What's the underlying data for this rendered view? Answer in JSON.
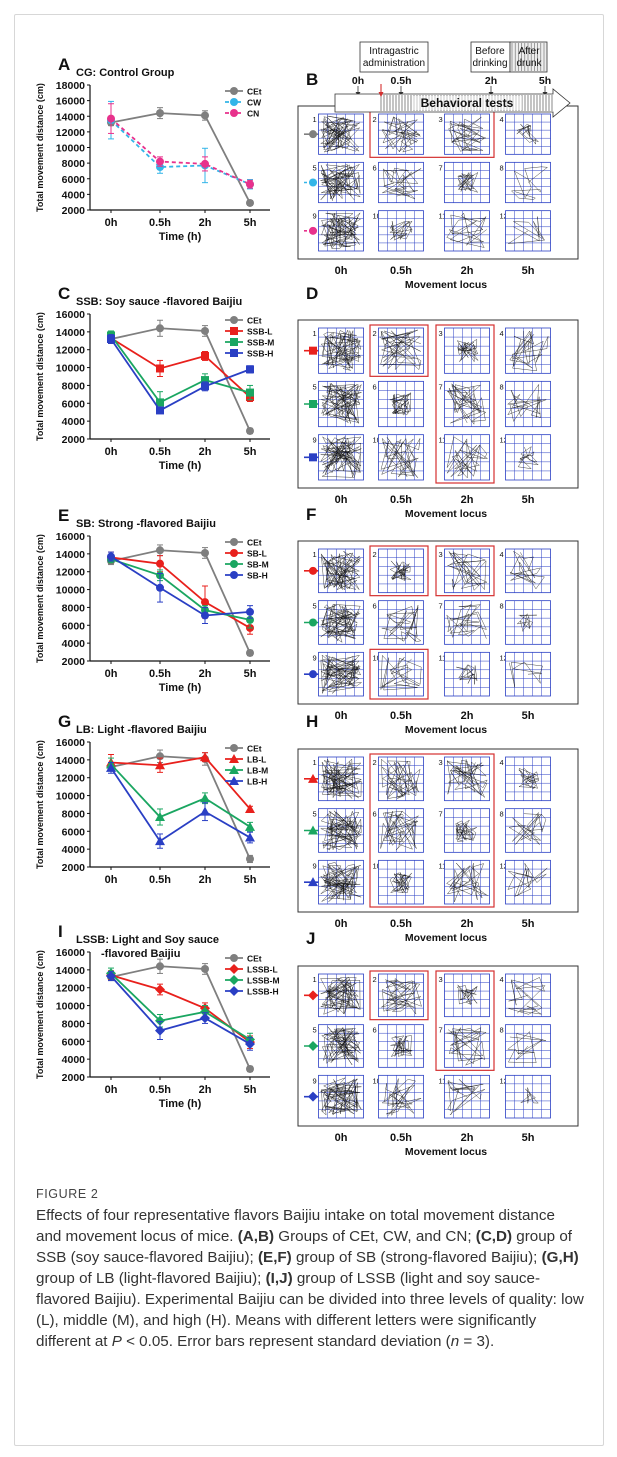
{
  "panels": [
    {
      "letter": "A",
      "title": "CG: Control Group",
      "title2": "",
      "series": [
        {
          "name": "CEt",
          "color": "#7f7f7f",
          "marker": "circle",
          "dash": false,
          "values": [
            13200,
            14400,
            14100,
            2900
          ],
          "errors": [
            400,
            700,
            600,
            300
          ]
        },
        {
          "name": "CW",
          "color": "#33b5e8",
          "marker": "circle",
          "dash": true,
          "values": [
            13500,
            7500,
            7700,
            5300
          ],
          "errors": [
            2400,
            800,
            2200,
            600
          ]
        },
        {
          "name": "CN",
          "color": "#e8318c",
          "marker": "circle",
          "dash": true,
          "values": [
            13700,
            8200,
            7900,
            5300
          ],
          "errors": [
            1900,
            600,
            900,
            500
          ]
        }
      ]
    },
    {
      "letter": "C",
      "title": "SSB: Soy sauce -flavored Baijiu",
      "title2": "",
      "series": [
        {
          "name": "CEt",
          "color": "#7f7f7f",
          "marker": "circle",
          "dash": false,
          "values": [
            13200,
            14400,
            14100,
            2900
          ],
          "errors": [
            400,
            900,
            600,
            300
          ]
        },
        {
          "name": "SSB-L",
          "color": "#e8201c",
          "marker": "square",
          "dash": false,
          "values": [
            13300,
            9900,
            11300,
            6700
          ],
          "errors": [
            600,
            900,
            500,
            500
          ]
        },
        {
          "name": "SSB-M",
          "color": "#1aa661",
          "marker": "square",
          "dash": false,
          "values": [
            13600,
            6100,
            8600,
            7200
          ],
          "errors": [
            500,
            1200,
            700,
            800
          ]
        },
        {
          "name": "SSB-H",
          "color": "#2a3fc4",
          "marker": "square",
          "dash": false,
          "values": [
            13200,
            5200,
            7900,
            9800
          ],
          "errors": [
            500,
            300,
            500,
            400
          ]
        }
      ]
    },
    {
      "letter": "E",
      "title": "SB: Strong -flavored Baijiu",
      "title2": "",
      "series": [
        {
          "name": "CEt",
          "color": "#7f7f7f",
          "marker": "circle",
          "dash": false,
          "values": [
            13200,
            14400,
            14100,
            2900
          ],
          "errors": [
            400,
            600,
            600,
            300
          ]
        },
        {
          "name": "SB-L",
          "color": "#e8201c",
          "marker": "circle",
          "dash": false,
          "values": [
            13600,
            12900,
            8600,
            5700
          ],
          "errors": [
            600,
            900,
            1800,
            700
          ]
        },
        {
          "name": "SB-M",
          "color": "#1aa661",
          "marker": "circle",
          "dash": false,
          "values": [
            13400,
            11600,
            7700,
            6600
          ],
          "errors": [
            400,
            600,
            500,
            900
          ]
        },
        {
          "name": "SB-H",
          "color": "#2a3fc4",
          "marker": "circle",
          "dash": false,
          "values": [
            13700,
            10200,
            7100,
            7500
          ],
          "errors": [
            500,
            1600,
            900,
            700
          ]
        }
      ]
    },
    {
      "letter": "G",
      "title": "LB: Light -flavored Baijiu",
      "title2": "",
      "series": [
        {
          "name": "CEt",
          "color": "#7f7f7f",
          "marker": "circle",
          "dash": false,
          "values": [
            13200,
            14400,
            14100,
            2900
          ],
          "errors": [
            400,
            700,
            700,
            400
          ]
        },
        {
          "name": "LB-L",
          "color": "#e8201c",
          "marker": "triangle",
          "dash": false,
          "values": [
            13700,
            13400,
            14300,
            8500
          ],
          "errors": [
            900,
            800,
            500,
            300
          ]
        },
        {
          "name": "LB-M",
          "color": "#1aa661",
          "marker": "triangle",
          "dash": false,
          "values": [
            13500,
            7600,
            9700,
            6500
          ],
          "errors": [
            700,
            900,
            600,
            500
          ]
        },
        {
          "name": "LB-H",
          "color": "#2a3fc4",
          "marker": "triangle",
          "dash": false,
          "values": [
            13100,
            4900,
            8200,
            5300
          ],
          "errors": [
            600,
            800,
            1000,
            600
          ]
        }
      ]
    },
    {
      "letter": "I",
      "title": "LSSB: Light and Soy sauce",
      "title2": "-flavored Baijiu",
      "series": [
        {
          "name": "CEt",
          "color": "#7f7f7f",
          "marker": "circle",
          "dash": false,
          "values": [
            13200,
            14400,
            14100,
            2900
          ],
          "errors": [
            400,
            800,
            600,
            300
          ]
        },
        {
          "name": "LSSB-L",
          "color": "#e8201c",
          "marker": "diamond",
          "dash": false,
          "values": [
            13400,
            11800,
            9700,
            5900
          ],
          "errors": [
            500,
            600,
            600,
            700
          ]
        },
        {
          "name": "LSSB-M",
          "color": "#1aa661",
          "marker": "diamond",
          "dash": false,
          "values": [
            13600,
            8300,
            9300,
            6200
          ],
          "errors": [
            600,
            700,
            700,
            700
          ]
        },
        {
          "name": "LSSB-H",
          "color": "#2a3fc4",
          "marker": "diamond",
          "dash": false,
          "values": [
            13300,
            7200,
            8600,
            5700
          ],
          "errors": [
            500,
            1000,
            600,
            700
          ]
        }
      ]
    }
  ],
  "chart_data": [
    {
      "type": "line",
      "title": "CG: Control Group",
      "x": [
        "0h",
        "0.5h",
        "2h",
        "5h"
      ],
      "xlabel": "Time (h)",
      "ylabel": "Total movement distance (cm)",
      "ylim": [
        2000,
        18000
      ],
      "series": [
        {
          "name": "CEt",
          "values": [
            13200,
            14400,
            14100,
            2900
          ]
        },
        {
          "name": "CW",
          "values": [
            13500,
            7500,
            7700,
            5300
          ]
        },
        {
          "name": "CN",
          "values": [
            13700,
            8200,
            7900,
            5300
          ]
        }
      ]
    },
    {
      "type": "line",
      "title": "SSB: Soy sauce -flavored Baijiu",
      "x": [
        "0h",
        "0.5h",
        "2h",
        "5h"
      ],
      "xlabel": "Time (h)",
      "ylabel": "Total movement distance (cm)",
      "ylim": [
        2000,
        16000
      ],
      "series": [
        {
          "name": "SSB-L",
          "values": [
            13300,
            9900,
            11300,
            6700
          ]
        },
        {
          "name": "SSB-M",
          "values": [
            13600,
            6100,
            8600,
            7200
          ]
        },
        {
          "name": "SSB-H",
          "values": [
            13200,
            5200,
            7900,
            9800
          ]
        }
      ]
    },
    {
      "type": "line",
      "title": "SB: Strong -flavored Baijiu",
      "x": [
        "0h",
        "0.5h",
        "2h",
        "5h"
      ],
      "xlabel": "Time (h)",
      "ylabel": "Total movement distance (cm)",
      "ylim": [
        2000,
        16000
      ],
      "series": [
        {
          "name": "SB-L",
          "values": [
            13600,
            12900,
            8600,
            5700
          ]
        },
        {
          "name": "SB-M",
          "values": [
            13400,
            11600,
            7700,
            6600
          ]
        },
        {
          "name": "SB-H",
          "values": [
            13700,
            10200,
            7100,
            7500
          ]
        }
      ]
    },
    {
      "type": "line",
      "title": "LB: Light -flavored Baijiu",
      "x": [
        "0h",
        "0.5h",
        "2h",
        "5h"
      ],
      "xlabel": "",
      "ylabel": "Total movement distance (cm)",
      "ylim": [
        2000,
        16000
      ],
      "series": [
        {
          "name": "LB-L",
          "values": [
            13700,
            13400,
            14300,
            8500
          ]
        },
        {
          "name": "LB-M",
          "values": [
            13500,
            7600,
            9700,
            6500
          ]
        },
        {
          "name": "LB-H",
          "values": [
            13100,
            4900,
            8200,
            5300
          ]
        }
      ]
    },
    {
      "type": "line",
      "title": "LSSB: Light and Soy sauce -flavored Baijiu",
      "x": [
        "0h",
        "0.5h",
        "2h",
        "5h"
      ],
      "xlabel": "Time (h)",
      "ylabel": "Total movement distance (cm)",
      "ylim": [
        2000,
        16000
      ],
      "series": [
        {
          "name": "LSSB-L",
          "values": [
            13400,
            11800,
            9700,
            5900
          ]
        },
        {
          "name": "LSSB-M",
          "values": [
            13600,
            8300,
            9300,
            6200
          ]
        },
        {
          "name": "LSSB-H",
          "values": [
            13300,
            7200,
            8600,
            5700
          ]
        }
      ]
    }
  ],
  "axis": {
    "ylabel": "Total movement distance (cm)",
    "xlabel": "Time (h)",
    "xcats": [
      "0h",
      "0.5h",
      "2h",
      "5h"
    ],
    "ticks_a": [
      "2000",
      "4000",
      "6000",
      "8000",
      "10000",
      "12000",
      "14000",
      "16000",
      "18000"
    ],
    "ticks": [
      "2000",
      "4000",
      "6000",
      "8000",
      "10000",
      "12000",
      "14000",
      "16000"
    ]
  },
  "loci_letters": [
    "B",
    "D",
    "F",
    "H",
    "J"
  ],
  "timeline": {
    "box1": "Intragastric",
    "box1b": "administration",
    "box2": "Before",
    "box2b": "drinking",
    "box3": "After",
    "box3b": "drunk",
    "t0": "0h",
    "t1": "0.5h",
    "t2": "2h",
    "t3": "5h",
    "arrow_label": "Behavioral tests"
  },
  "loci": {
    "col_labels": [
      "0h",
      "0.5h",
      "2h",
      "5h"
    ],
    "xlabel": "Movement locus",
    "numbers": [
      "1",
      "2",
      "3",
      "4",
      "5",
      "6",
      "7",
      "8",
      "9",
      "10",
      "11",
      "12"
    ]
  },
  "caption": {
    "label": "FIGURE 2",
    "t1": "Effects of four representative flavors Baijiu intake on total movement distance and movement locus of mice. ",
    "b1": "(A,B)",
    "t2": " Groups of CEt, CW, and CN; ",
    "b2": "(C,D)",
    "t3": " group of SSB (soy sauce-flavored Baijiu); ",
    "b3": "(E,F)",
    "t4": " group of SB (strong-flavored Baijiu); ",
    "b4": "(G,H)",
    "t5": " group of LB (light-flavored Baijiu); ",
    "b5": "(I,J)",
    "t6": " group of LSSB (light and soy sauce-flavored Baijiu). Experimental Baijiu can be divided into three levels of quality: low (L), middle (M), and high (H). Means with different letters were significantly different at ",
    "p": "P",
    "t7": " < 0.05. Error bars represent standard deviation (",
    "n": "n",
    "t8": " = 3)."
  }
}
